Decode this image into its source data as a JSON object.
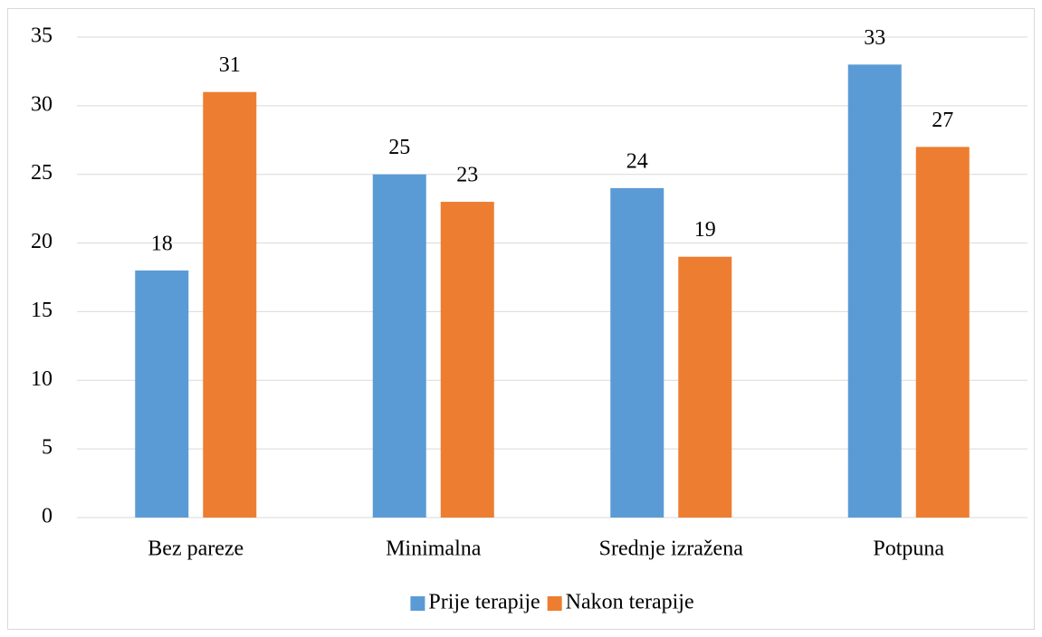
{
  "chart_data": {
    "type": "bar",
    "categories": [
      "Bez pareze",
      "Minimalna",
      "Srednje izražena",
      "Potpuna"
    ],
    "series": [
      {
        "name": "Prije terapije",
        "color": "#5b9bd5",
        "values": [
          18,
          25,
          24,
          33
        ]
      },
      {
        "name": "Nakon terapije",
        "color": "#ed7d31",
        "values": [
          31,
          23,
          19,
          27
        ]
      }
    ],
    "ylim": [
      0,
      35
    ],
    "yticks": [
      0,
      5,
      10,
      15,
      20,
      25,
      30,
      35
    ],
    "grid": true,
    "legend": "bottom"
  }
}
